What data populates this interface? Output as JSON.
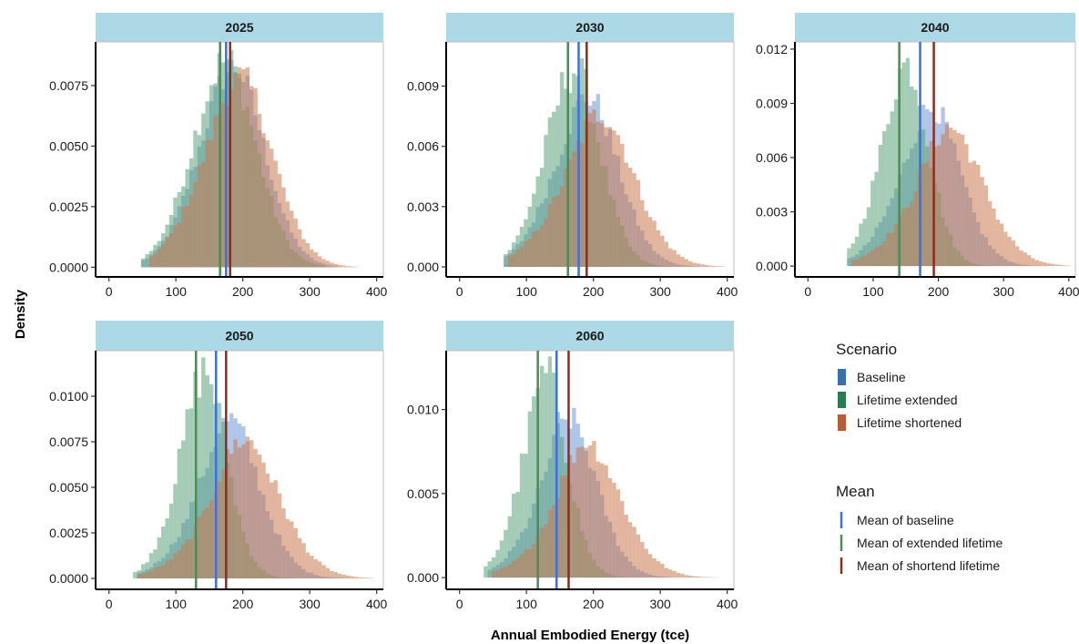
{
  "chart_data": {
    "type": "histogram",
    "xlabel": "Annual Embodied Energy (tce)",
    "ylabel": "Density",
    "xlim": [
      -20,
      410
    ],
    "x_ticks": [
      0,
      100,
      200,
      300,
      400
    ],
    "bin_width": 6,
    "legend_scenario": {
      "title": "Scenario",
      "items": [
        {
          "label": "Baseline",
          "color": "#3a6fad"
        },
        {
          "label": "Lifetime extended",
          "color": "#2d7b50"
        },
        {
          "label": "Lifetime shortened",
          "color": "#b85c35"
        }
      ]
    },
    "legend_mean": {
      "title": "Mean",
      "items": [
        {
          "label": "Mean of baseline",
          "color": "#3d6fe0"
        },
        {
          "label": "Mean of extended lifetime",
          "color": "#4d8a56"
        },
        {
          "label": "Mean of shortend lifetime",
          "color": "#8e2b1c"
        }
      ]
    },
    "series_colors": {
      "baseline": "#6d98d6",
      "extended": "#5aa27a",
      "shortened": "#c9784f"
    },
    "panels": [
      {
        "title": "2025",
        "ylim": [
          -0.0004,
          0.0093
        ],
        "y_ticks": [
          "0.0000",
          "0.0025",
          "0.0050",
          "0.0075"
        ],
        "y_tick_values": [
          0,
          0.0025,
          0.005,
          0.0075
        ],
        "means": {
          "baseline": 175,
          "extended": 166,
          "shortened": 181
        },
        "dist": {
          "baseline": {
            "mean": 175,
            "sd": 50,
            "skew": 0.25,
            "min": 48,
            "max": 340,
            "jit": 0.08
          },
          "extended": {
            "mean": 166,
            "sd": 48,
            "skew": 0.2,
            "min": 50,
            "max": 320,
            "jit": 0.1
          },
          "shortened": {
            "mean": 181,
            "sd": 54,
            "skew": 0.35,
            "min": 60,
            "max": 370,
            "jit": 0.08
          }
        }
      },
      {
        "title": "2030",
        "ylim": [
          -0.0005,
          0.0112
        ],
        "y_ticks": [
          "0.000",
          "0.003",
          "0.006",
          "0.009"
        ],
        "y_tick_values": [
          0,
          0.003,
          0.006,
          0.009
        ],
        "means": {
          "baseline": 178,
          "extended": 162,
          "shortened": 190
        },
        "dist": {
          "baseline": {
            "mean": 178,
            "sd": 50,
            "skew": 0.35,
            "min": 70,
            "max": 360,
            "jit": 0.09
          },
          "extended": {
            "mean": 162,
            "sd": 42,
            "skew": 0.25,
            "min": 68,
            "max": 320,
            "jit": 0.12
          },
          "shortened": {
            "mean": 190,
            "sd": 58,
            "skew": 0.5,
            "min": 75,
            "max": 395,
            "jit": 0.09
          }
        }
      },
      {
        "title": "2040",
        "ylim": [
          -0.0006,
          0.0124
        ],
        "y_ticks": [
          "0.000",
          "0.003",
          "0.006",
          "0.009",
          "0.012"
        ],
        "y_tick_values": [
          0,
          0.003,
          0.006,
          0.009,
          0.012
        ],
        "means": {
          "baseline": 172,
          "extended": 140,
          "shortened": 193
        },
        "dist": {
          "baseline": {
            "mean": 172,
            "sd": 50,
            "skew": 0.5,
            "min": 65,
            "max": 380,
            "jit": 0.09
          },
          "extended": {
            "mean": 140,
            "sd": 38,
            "skew": 0.35,
            "min": 60,
            "max": 300,
            "jit": 0.1
          },
          "shortened": {
            "mean": 193,
            "sd": 60,
            "skew": 0.65,
            "min": 70,
            "max": 400,
            "jit": 0.09
          }
        }
      },
      {
        "title": "2050",
        "ylim": [
          -0.0006,
          0.0125
        ],
        "y_ticks": [
          "0.0000",
          "0.0025",
          "0.0050",
          "0.0075",
          "0.0100"
        ],
        "y_tick_values": [
          0,
          0.0025,
          0.005,
          0.0075,
          0.01
        ],
        "means": {
          "baseline": 160,
          "extended": 130,
          "shortened": 175
        },
        "dist": {
          "baseline": {
            "mean": 160,
            "sd": 52,
            "skew": 0.6,
            "min": 45,
            "max": 360,
            "jit": 0.09
          },
          "extended": {
            "mean": 130,
            "sd": 38,
            "skew": 0.45,
            "min": 38,
            "max": 300,
            "jit": 0.12
          },
          "shortened": {
            "mean": 175,
            "sd": 62,
            "skew": 0.75,
            "min": 45,
            "max": 395,
            "jit": 0.09
          }
        }
      },
      {
        "title": "2060",
        "ylim": [
          -0.0007,
          0.0135
        ],
        "y_ticks": [
          "0.000",
          "0.005",
          "0.010"
        ],
        "y_tick_values": [
          0,
          0.005,
          0.01
        ],
        "means": {
          "baseline": 145,
          "extended": 117,
          "shortened": 163
        },
        "dist": {
          "baseline": {
            "mean": 145,
            "sd": 48,
            "skew": 0.6,
            "min": 45,
            "max": 340,
            "jit": 0.09
          },
          "extended": {
            "mean": 117,
            "sd": 36,
            "skew": 0.45,
            "min": 40,
            "max": 280,
            "jit": 0.12
          },
          "shortened": {
            "mean": 163,
            "sd": 60,
            "skew": 0.8,
            "min": 50,
            "max": 390,
            "jit": 0.09
          }
        }
      }
    ]
  }
}
